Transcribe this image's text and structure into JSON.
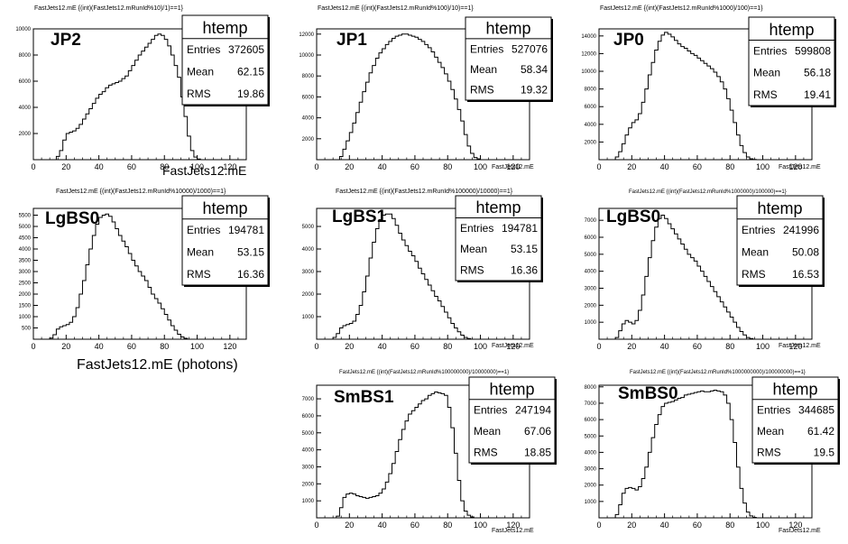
{
  "chart_data": [
    {
      "type": "histogram",
      "title": "FastJets12.mE {(int)(FastJets12.mRunId%10)/1)==1}",
      "panel_label": "JP2",
      "xlabel": "FastJets12.mE",
      "xlim": [
        0,
        130
      ],
      "ylim": [
        0,
        10000
      ],
      "xticks": [
        0,
        20,
        40,
        60,
        80,
        100,
        120
      ],
      "yticks": [
        2000,
        4000,
        6000,
        8000,
        10000
      ],
      "stats": {
        "title": "htemp",
        "entries_label": "Entries",
        "entries": "372605",
        "mean_label": "Mean",
        "mean": "62.15",
        "rms_label": "RMS",
        "rms": "19.86"
      },
      "bins": {
        "start": 0,
        "width": 2
      },
      "values": [
        0,
        0,
        0,
        0,
        0,
        0,
        0,
        250,
        700,
        1500,
        2000,
        2100,
        2200,
        2400,
        2700,
        3100,
        3500,
        3900,
        4300,
        4700,
        5000,
        5200,
        5500,
        5700,
        5800,
        5900,
        6000,
        6200,
        6400,
        6800,
        7200,
        7600,
        8000,
        8300,
        8600,
        8900,
        9200,
        9500,
        9600,
        9500,
        9200,
        8700,
        8000,
        7200,
        6300,
        4800,
        3300,
        1800,
        700,
        200,
        50,
        0,
        0,
        0,
        0,
        0,
        0,
        0,
        0,
        0,
        0,
        0,
        0,
        0,
        0
      ]
    },
    {
      "type": "histogram",
      "title": "FastJets12.mE {(int)(FastJets12.mRunId%100)/10)==1}",
      "panel_label": "JP1",
      "xlabel": "FastJets12.mE",
      "xlim": [
        0,
        130
      ],
      "ylim": [
        0,
        12500
      ],
      "xticks": [
        0,
        20,
        40,
        60,
        80,
        100,
        120
      ],
      "yticks": [
        2000,
        4000,
        6000,
        8000,
        10000,
        12000
      ],
      "stats": {
        "title": "htemp",
        "entries_label": "Entries",
        "entries": "527076",
        "mean_label": "Mean",
        "mean": "58.34",
        "rms_label": "RMS",
        "rms": "19.32"
      },
      "bins": {
        "start": 0,
        "width": 2
      },
      "values": [
        0,
        0,
        0,
        0,
        0,
        0,
        0,
        300,
        1000,
        1800,
        2600,
        3500,
        4500,
        5500,
        6500,
        7400,
        8300,
        9000,
        9700,
        10200,
        10600,
        11000,
        11300,
        11600,
        11800,
        11900,
        12000,
        12000,
        11900,
        11800,
        11700,
        11500,
        11300,
        11000,
        10700,
        10300,
        9800,
        9300,
        8800,
        8200,
        7500,
        6700,
        5800,
        4800,
        3700,
        2400,
        1300,
        600,
        200,
        80,
        0,
        0,
        0,
        0,
        0,
        0,
        0,
        0,
        0,
        0,
        0,
        0,
        0,
        0,
        0
      ]
    },
    {
      "type": "histogram",
      "title": "FastJets12.mE {(int)(FastJets12.mRunId%1000)/100)==1}",
      "panel_label": "JP0",
      "xlabel": "FastJets12.mE",
      "xlim": [
        0,
        130
      ],
      "ylim": [
        0,
        14800
      ],
      "xticks": [
        0,
        20,
        40,
        60,
        80,
        100,
        120
      ],
      "yticks": [
        2000,
        4000,
        6000,
        8000,
        10000,
        12000,
        14000
      ],
      "stats": {
        "title": "htemp",
        "entries_label": "Entries",
        "entries": "599808",
        "mean_label": "Mean",
        "mean": "56.18",
        "rms_label": "RMS",
        "rms": "19.41"
      },
      "bins": {
        "start": 0,
        "width": 2
      },
      "values": [
        0,
        0,
        0,
        0,
        0,
        300,
        900,
        1800,
        2800,
        3600,
        4200,
        4500,
        5200,
        6500,
        8000,
        9600,
        11000,
        12400,
        13400,
        14100,
        14400,
        14200,
        13900,
        13500,
        13100,
        12800,
        12600,
        12300,
        12000,
        11800,
        11500,
        11200,
        10900,
        10600,
        10300,
        9900,
        9400,
        8800,
        8000,
        6900,
        5600,
        4200,
        2800,
        1600,
        800,
        300,
        100,
        30,
        0,
        0,
        0,
        0,
        0,
        0,
        0,
        0,
        0,
        0,
        0,
        0,
        0,
        0,
        0,
        0,
        0
      ]
    },
    {
      "type": "histogram",
      "title": "FastJets12.mE {(int)(FastJets12.mRunId%10000)/1000)==1}",
      "panel_label": "LgBS0",
      "xlabel": "FastJets12.mE (photons)",
      "xlim": [
        0,
        130
      ],
      "ylim": [
        0,
        5800
      ],
      "xticks": [
        0,
        20,
        40,
        60,
        80,
        100,
        120
      ],
      "yticks": [
        500,
        1000,
        1500,
        2000,
        2500,
        3000,
        3500,
        4000,
        4500,
        5000,
        5500
      ],
      "stats": {
        "title": "htemp",
        "entries_label": "Entries",
        "entries": "194781",
        "mean_label": "Mean",
        "mean": "53.15",
        "rms_label": "RMS",
        "rms": "16.36"
      },
      "bins": {
        "start": 0,
        "width": 2
      },
      "values": [
        0,
        0,
        0,
        0,
        0,
        50,
        200,
        450,
        550,
        600,
        650,
        750,
        1000,
        1400,
        2000,
        2600,
        3300,
        4000,
        4600,
        5100,
        5400,
        5500,
        5550,
        5450,
        5200,
        4900,
        4600,
        4350,
        4100,
        3800,
        3500,
        3250,
        3000,
        2800,
        2600,
        2300,
        2000,
        1800,
        1600,
        1350,
        1100,
        850,
        600,
        400,
        220,
        100,
        40,
        0,
        0,
        0,
        0,
        0,
        0,
        0,
        0,
        0,
        0,
        0,
        0,
        0,
        0,
        0,
        0,
        0,
        0
      ]
    },
    {
      "type": "histogram",
      "title": "FastJets12.mE {(int)(FastJets12.mRunId%100000)/10000)==1}",
      "panel_label": "LgBS1",
      "xlabel": "FastJets12.mE",
      "xlim": [
        0,
        130
      ],
      "ylim": [
        0,
        5800
      ],
      "xticks": [
        0,
        20,
        40,
        60,
        80,
        100,
        120
      ],
      "yticks": [
        1000,
        2000,
        3000,
        4000,
        5000
      ],
      "stats": {
        "title": "htemp",
        "entries_label": "Entries",
        "entries": "194781",
        "mean_label": "Mean",
        "mean": "53.15",
        "rms_label": "RMS",
        "rms": "16.36"
      },
      "bins": {
        "start": 0,
        "width": 2
      },
      "values": [
        0,
        0,
        0,
        0,
        0,
        80,
        250,
        500,
        600,
        650,
        700,
        800,
        1100,
        1500,
        2100,
        2800,
        3600,
        4300,
        4900,
        5300,
        5500,
        5550,
        5550,
        5350,
        5050,
        4700,
        4400,
        4150,
        3900,
        3700,
        3450,
        3150,
        2900,
        2650,
        2400,
        2150,
        1900,
        1700,
        1450,
        1200,
        950,
        700,
        500,
        330,
        180,
        80,
        30,
        0,
        0,
        0,
        0,
        0,
        0,
        0,
        0,
        0,
        0,
        0,
        0,
        0,
        0,
        0,
        0,
        0,
        0
      ]
    },
    {
      "type": "histogram",
      "title": "FastJets12.mE {(int)(FastJets12.mRunId%1000000)/100000)==1}",
      "panel_label": "LgBS0",
      "xlabel": "FastJets12.mE",
      "xlim": [
        0,
        130
      ],
      "ylim": [
        0,
        7700
      ],
      "xticks": [
        0,
        20,
        40,
        60,
        80,
        100,
        120
      ],
      "yticks": [
        1000,
        2000,
        3000,
        4000,
        5000,
        6000,
        7000
      ],
      "stats": {
        "title": "htemp",
        "entries_label": "Entries",
        "entries": "241996",
        "mean_label": "Mean",
        "mean": "50.08",
        "rms_label": "RMS",
        "rms": "16.53"
      },
      "bins": {
        "start": 0,
        "width": 2
      },
      "values": [
        0,
        0,
        0,
        0,
        0,
        100,
        500,
        900,
        1100,
        1000,
        900,
        1100,
        1700,
        2600,
        3700,
        4800,
        5800,
        6600,
        7100,
        7300,
        7100,
        6800,
        6500,
        6200,
        5900,
        5600,
        5300,
        5000,
        4800,
        4600,
        4300,
        4000,
        3700,
        3400,
        3100,
        2800,
        2500,
        2200,
        1900,
        1600,
        1300,
        1000,
        700,
        450,
        250,
        100,
        40,
        0,
        0,
        0,
        0,
        0,
        0,
        0,
        0,
        0,
        0,
        0,
        0,
        0,
        0,
        0,
        0,
        0,
        0
      ]
    },
    {
      "type": "histogram",
      "title": "FastJets12.mE {(int)(FastJets12.mRunId%100000000)/10000000)==1}",
      "panel_label": "SmBS1",
      "xlabel": "FastJets12.mE",
      "xlim": [
        0,
        130
      ],
      "ylim": [
        0,
        7800
      ],
      "xticks": [
        0,
        20,
        40,
        60,
        80,
        100,
        120
      ],
      "yticks": [
        1000,
        2000,
        3000,
        4000,
        5000,
        6000,
        7000
      ],
      "stats": {
        "title": "htemp",
        "entries_label": "Entries",
        "entries": "247194",
        "mean_label": "Mean",
        "mean": "67.06",
        "rms_label": "RMS",
        "rms": "18.85"
      },
      "bins": {
        "start": 0,
        "width": 2
      },
      "values": [
        0,
        0,
        0,
        0,
        0,
        0,
        100,
        600,
        1200,
        1400,
        1450,
        1400,
        1300,
        1250,
        1200,
        1150,
        1200,
        1250,
        1300,
        1450,
        1700,
        2100,
        2600,
        3200,
        3900,
        4600,
        5200,
        5700,
        6100,
        6300,
        6500,
        6700,
        6900,
        7000,
        7200,
        7300,
        7400,
        7350,
        7300,
        7200,
        6500,
        5300,
        3800,
        2200,
        1000,
        400,
        150,
        50,
        0,
        0,
        0,
        0,
        0,
        0,
        0,
        0,
        0,
        0,
        0,
        0,
        0,
        0,
        0,
        0,
        0
      ]
    },
    {
      "type": "histogram",
      "title": "FastJets12.mE {(int)(FastJets12.mRunId%1000000000)/100000000)==1}",
      "panel_label": "SmBS0",
      "xlabel": "FastJets12.mE",
      "xlim": [
        0,
        130
      ],
      "ylim": [
        0,
        8100
      ],
      "xticks": [
        0,
        20,
        40,
        60,
        80,
        100,
        120
      ],
      "yticks": [
        1000,
        2000,
        3000,
        4000,
        5000,
        6000,
        7000,
        8000
      ],
      "stats": {
        "title": "htemp",
        "entries_label": "Entries",
        "entries": "344685",
        "mean_label": "Mean",
        "mean": "61.42",
        "rms_label": "RMS",
        "rms": "19.5"
      },
      "bins": {
        "start": 0,
        "width": 2
      },
      "values": [
        0,
        0,
        0,
        0,
        0,
        200,
        800,
        1500,
        1800,
        1850,
        1800,
        1700,
        1900,
        2400,
        3100,
        4000,
        4900,
        5700,
        6300,
        6800,
        7000,
        7050,
        7100,
        7200,
        7300,
        7350,
        7500,
        7550,
        7600,
        7650,
        7700,
        7750,
        7700,
        7700,
        7750,
        7800,
        7750,
        7700,
        7500,
        7000,
        6000,
        4600,
        3100,
        1800,
        900,
        350,
        120,
        30,
        0,
        0,
        0,
        0,
        0,
        0,
        0,
        0,
        0,
        0,
        0,
        0,
        0,
        0,
        0,
        0,
        0
      ]
    }
  ]
}
